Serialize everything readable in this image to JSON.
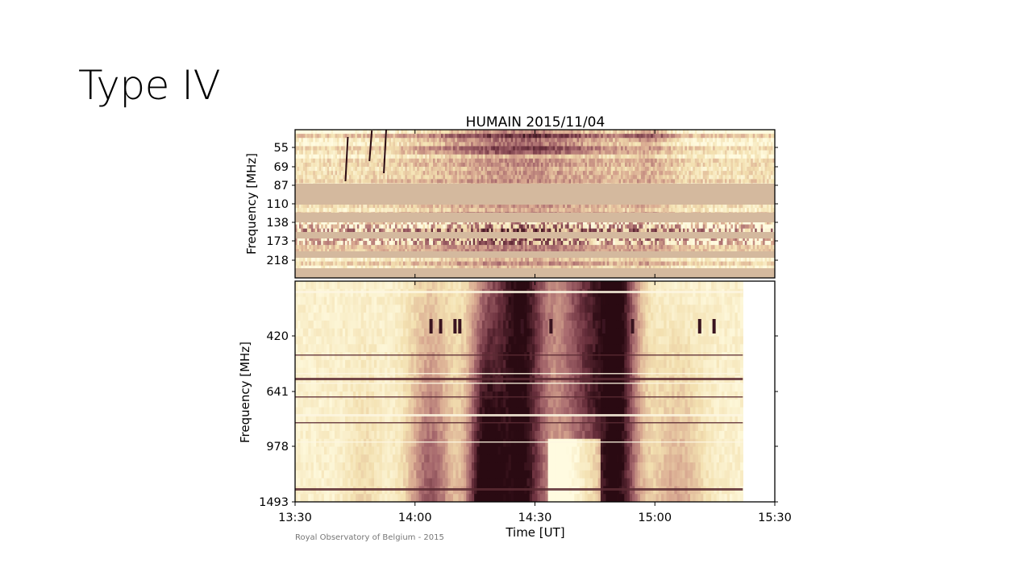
{
  "slide": {
    "title": "Type IV"
  },
  "chart_data": {
    "type": "heatmap",
    "title": "HUMAIN 2015/11/04",
    "xlabel": "Time [UT]",
    "x_ticks": [
      "13:30",
      "14:00",
      "14:30",
      "15:00",
      "15:30"
    ],
    "xlim": [
      "13:30",
      "15:30"
    ],
    "panels": [
      {
        "name": "upper",
        "ylabel": "Frequency [MHz]",
        "y_ticks": [
          55,
          69,
          87,
          110,
          138,
          173,
          218
        ],
        "y_scale": "log, inverted",
        "data_end": "15:30"
      },
      {
        "name": "lower",
        "ylabel": "Frequency [MHz]",
        "y_ticks": [
          420,
          641,
          978,
          1493
        ],
        "y_scale": "log, inverted",
        "data_end": "15:22"
      }
    ],
    "colormap": [
      "#fffbe0",
      "#f3e0b0",
      "#d8a890",
      "#a86a6e",
      "#6e3340",
      "#2a0a12"
    ],
    "credit": "Royal Observatory of Belgium - 2015"
  }
}
